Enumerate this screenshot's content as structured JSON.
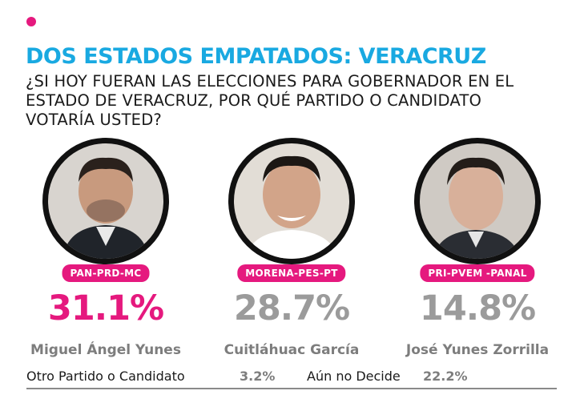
{
  "header": {
    "title": "DOS ESTADOS EMPATADOS: VERACRUZ",
    "question": "¿SI HOY FUERAN LAS ELECCIONES PARA GOBERNADOR EN EL ESTADO DE VERACRUZ, POR QUÉ PARTIDO O CANDIDATO VOTARÍA USTED?"
  },
  "colors": {
    "accent": "#e5197e",
    "title": "#19a9e1",
    "muted": "#9b9b9b"
  },
  "candidates": [
    {
      "party": "PAN-PRD-MC",
      "percent": "31.1%",
      "name": "Miguel Ángel Yunes"
    },
    {
      "party": "MORENA-PES-PT",
      "percent": "28.7%",
      "name": "Cuitláhuac García"
    },
    {
      "party": "PRI-PVEM -PANAL",
      "percent": "14.8%",
      "name": "José Yunes Zorrilla"
    }
  ],
  "footer": {
    "other_label": "Otro Partido o Candidato",
    "other_value": "3.2%",
    "undecided_label": "Aún no Decide",
    "undecided_value": "22.2%"
  },
  "chart_data": {
    "type": "bar",
    "categories": [
      "Miguel Ángel Yunes",
      "Cuitláhuac García",
      "José Yunes Zorrilla",
      "Otro Partido o Candidato",
      "Aún no Decide"
    ],
    "values": [
      31.1,
      28.7,
      14.8,
      3.2,
      22.2
    ],
    "parties": [
      "PAN-PRD-MC",
      "MORENA-PES-PT",
      "PRI-PVEM -PANAL",
      "",
      ""
    ],
    "title": "DOS ESTADOS EMPATADOS: VERACRUZ",
    "subtitle": "¿SI HOY FUERAN LAS ELECCIONES PARA GOBERNADOR EN EL ESTADO DE VERACRUZ, POR QUÉ PARTIDO O CANDIDATO VOTARÍA USTED?"
  }
}
